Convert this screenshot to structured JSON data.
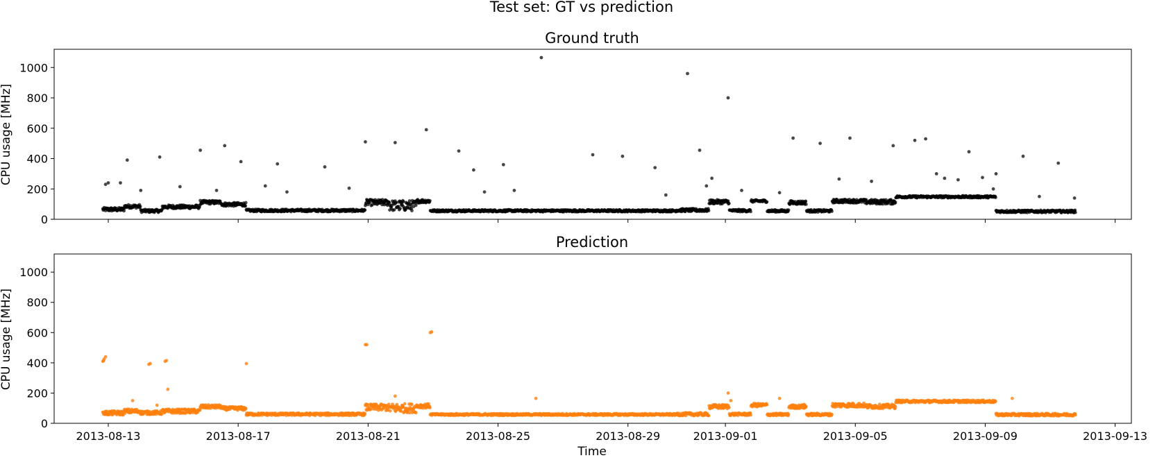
{
  "suptitle": "Test set: GT vs prediction",
  "xlabel": "Time",
  "x_tick_labels": [
    "2013-08-13",
    "2013-08-17",
    "2013-08-21",
    "2013-08-25",
    "2013-08-29",
    "2013-09-01",
    "2013-09-05",
    "2013-09-09",
    "2013-09-13"
  ],
  "chart_data": [
    {
      "type": "scatter",
      "title": "Ground truth",
      "ylabel": "CPU usage [MHz]",
      "xlim": [
        "2013-08-11T08:00",
        "2013-09-13T12:00"
      ],
      "ylim": [
        0,
        1120
      ],
      "y_ticks": [
        0,
        200,
        400,
        600,
        800,
        1000
      ],
      "color": "#000000",
      "baseline_segments": [
        {
          "x": [
            "2013-08-12T20:00",
            "2013-08-13T12:00"
          ],
          "y": 65,
          "jitter": 12
        },
        {
          "x": [
            "2013-08-13T12:00",
            "2013-08-14T00:00"
          ],
          "y": 85,
          "jitter": 12
        },
        {
          "x": [
            "2013-08-14T00:00",
            "2013-08-14T16:00"
          ],
          "y": 55,
          "jitter": 10
        },
        {
          "x": [
            "2013-08-14T16:00",
            "2013-08-15T20:00"
          ],
          "y": 82,
          "jitter": 12
        },
        {
          "x": [
            "2013-08-15T20:00",
            "2013-08-16T12:00"
          ],
          "y": 112,
          "jitter": 12
        },
        {
          "x": [
            "2013-08-16T12:00",
            "2013-08-17T06:00"
          ],
          "y": 98,
          "jitter": 12
        },
        {
          "x": [
            "2013-08-17T06:00",
            "2013-08-20T22:00"
          ],
          "y": 58,
          "jitter": 8
        },
        {
          "x": [
            "2013-08-20T22:00",
            "2013-08-21T16:00"
          ],
          "y": 110,
          "jitter": 20
        },
        {
          "x": [
            "2013-08-21T16:00",
            "2013-08-22T12:00"
          ],
          "y": 90,
          "jitter": 35
        },
        {
          "x": [
            "2013-08-22T12:00",
            "2013-08-22T22:00"
          ],
          "y": 120,
          "jitter": 12
        },
        {
          "x": [
            "2013-08-22T22:00",
            "2013-08-30T12:00"
          ],
          "y": 56,
          "jitter": 7
        },
        {
          "x": [
            "2013-08-30T12:00",
            "2013-08-31T12:00"
          ],
          "y": 60,
          "jitter": 10
        },
        {
          "x": [
            "2013-08-31T12:00",
            "2013-09-01T03:00"
          ],
          "y": 115,
          "jitter": 14
        },
        {
          "x": [
            "2013-09-01T03:00",
            "2013-09-01T19:00"
          ],
          "y": 57,
          "jitter": 8
        },
        {
          "x": [
            "2013-09-01T19:00",
            "2013-09-02T07:00"
          ],
          "y": 120,
          "jitter": 8
        },
        {
          "x": [
            "2013-09-02T07:00",
            "2013-09-02T23:00"
          ],
          "y": 55,
          "jitter": 8
        },
        {
          "x": [
            "2013-09-02T23:00",
            "2013-09-03T12:00"
          ],
          "y": 110,
          "jitter": 12
        },
        {
          "x": [
            "2013-09-03T12:00",
            "2013-09-04T07:00"
          ],
          "y": 55,
          "jitter": 8
        },
        {
          "x": [
            "2013-09-04T07:00",
            "2013-09-05T07:00"
          ],
          "y": 120,
          "jitter": 12
        },
        {
          "x": [
            "2013-09-05T07:00",
            "2013-09-06T06:00"
          ],
          "y": 115,
          "jitter": 15
        },
        {
          "x": [
            "2013-09-06T06:00",
            "2013-09-09T08:00"
          ],
          "y": 148,
          "jitter": 7
        },
        {
          "x": [
            "2013-09-09T08:00",
            "2013-09-11T19:00"
          ],
          "y": 52,
          "jitter": 8
        }
      ],
      "outliers": [
        {
          "x": "2013-08-12T22:00",
          "y": 230
        },
        {
          "x": "2013-08-13T00:00",
          "y": 240
        },
        {
          "x": "2013-08-13T09:00",
          "y": 240
        },
        {
          "x": "2013-08-13T14:00",
          "y": 390
        },
        {
          "x": "2013-08-14T00:00",
          "y": 190
        },
        {
          "x": "2013-08-14T14:00",
          "y": 410
        },
        {
          "x": "2013-08-15T05:00",
          "y": 215
        },
        {
          "x": "2013-08-15T20:00",
          "y": 455
        },
        {
          "x": "2013-08-16T08:00",
          "y": 190
        },
        {
          "x": "2013-08-16T14:00",
          "y": 485
        },
        {
          "x": "2013-08-17T02:00",
          "y": 380
        },
        {
          "x": "2013-08-17T20:00",
          "y": 220
        },
        {
          "x": "2013-08-18T05:00",
          "y": 365
        },
        {
          "x": "2013-08-18T12:00",
          "y": 180
        },
        {
          "x": "2013-08-19T16:00",
          "y": 345
        },
        {
          "x": "2013-08-20T10:00",
          "y": 205
        },
        {
          "x": "2013-08-20T22:00",
          "y": 510
        },
        {
          "x": "2013-08-21T20:00",
          "y": 505
        },
        {
          "x": "2013-08-22T19:00",
          "y": 590
        },
        {
          "x": "2013-08-23T19:00",
          "y": 450
        },
        {
          "x": "2013-08-24T06:00",
          "y": 325
        },
        {
          "x": "2013-08-24T14:00",
          "y": 180
        },
        {
          "x": "2013-08-25T04:00",
          "y": 360
        },
        {
          "x": "2013-08-25T12:00",
          "y": 190
        },
        {
          "x": "2013-08-26T08:00",
          "y": 1065
        },
        {
          "x": "2013-08-27T22:00",
          "y": 425
        },
        {
          "x": "2013-08-28T20:00",
          "y": 415
        },
        {
          "x": "2013-08-29T20:00",
          "y": 340
        },
        {
          "x": "2013-08-30T04:00",
          "y": 160
        },
        {
          "x": "2013-08-30T20:00",
          "y": 960
        },
        {
          "x": "2013-08-31T05:00",
          "y": 455
        },
        {
          "x": "2013-08-31T14:00",
          "y": 270
        },
        {
          "x": "2013-08-31T10:00",
          "y": 220
        },
        {
          "x": "2013-09-01T02:00",
          "y": 800
        },
        {
          "x": "2013-09-01T12:00",
          "y": 190
        },
        {
          "x": "2013-09-02T16:00",
          "y": 175
        },
        {
          "x": "2013-09-03T02:00",
          "y": 535
        },
        {
          "x": "2013-09-03T22:00",
          "y": 500
        },
        {
          "x": "2013-09-04T12:00",
          "y": 265
        },
        {
          "x": "2013-09-04T20:00",
          "y": 535
        },
        {
          "x": "2013-09-05T12:00",
          "y": 250
        },
        {
          "x": "2013-09-06T04:00",
          "y": 485
        },
        {
          "x": "2013-09-06T20:00",
          "y": 520
        },
        {
          "x": "2013-09-07T04:00",
          "y": 530
        },
        {
          "x": "2013-09-07T12:00",
          "y": 300
        },
        {
          "x": "2013-09-07T18:00",
          "y": 270
        },
        {
          "x": "2013-09-08T04:00",
          "y": 260
        },
        {
          "x": "2013-09-08T12:00",
          "y": 445
        },
        {
          "x": "2013-09-08T22:00",
          "y": 275
        },
        {
          "x": "2013-09-09T06:00",
          "y": 200
        },
        {
          "x": "2013-09-09T08:00",
          "y": 300
        },
        {
          "x": "2013-09-10T04:00",
          "y": 415
        },
        {
          "x": "2013-09-10T16:00",
          "y": 150
        },
        {
          "x": "2013-09-11T06:00",
          "y": 370
        },
        {
          "x": "2013-09-11T18:00",
          "y": 140
        }
      ]
    },
    {
      "type": "scatter",
      "title": "Prediction",
      "ylabel": "CPU usage [MHz]",
      "xlim": [
        "2013-08-11T08:00",
        "2013-09-13T12:00"
      ],
      "ylim": [
        0,
        1120
      ],
      "y_ticks": [
        0,
        200,
        400,
        600,
        800,
        1000
      ],
      "color": "#ff7f0e",
      "baseline_segments": [
        {
          "x": [
            "2013-08-12T20:00",
            "2013-08-13T12:00"
          ],
          "y": 68,
          "jitter": 14
        },
        {
          "x": [
            "2013-08-13T12:00",
            "2013-08-14T00:00"
          ],
          "y": 80,
          "jitter": 14
        },
        {
          "x": [
            "2013-08-14T00:00",
            "2013-08-14T16:00"
          ],
          "y": 70,
          "jitter": 12
        },
        {
          "x": [
            "2013-08-14T16:00",
            "2013-08-15T20:00"
          ],
          "y": 80,
          "jitter": 14
        },
        {
          "x": [
            "2013-08-15T20:00",
            "2013-08-16T12:00"
          ],
          "y": 110,
          "jitter": 12
        },
        {
          "x": [
            "2013-08-16T12:00",
            "2013-08-17T06:00"
          ],
          "y": 98,
          "jitter": 12
        },
        {
          "x": [
            "2013-08-17T06:00",
            "2013-08-20T22:00"
          ],
          "y": 60,
          "jitter": 8
        },
        {
          "x": [
            "2013-08-20T22:00",
            "2013-08-21T16:00"
          ],
          "y": 105,
          "jitter": 22
        },
        {
          "x": [
            "2013-08-21T16:00",
            "2013-08-22T12:00"
          ],
          "y": 100,
          "jitter": 30
        },
        {
          "x": [
            "2013-08-22T12:00",
            "2013-08-22T22:00"
          ],
          "y": 115,
          "jitter": 14
        },
        {
          "x": [
            "2013-08-22T22:00",
            "2013-08-30T12:00"
          ],
          "y": 58,
          "jitter": 6
        },
        {
          "x": [
            "2013-08-30T12:00",
            "2013-08-31T12:00"
          ],
          "y": 60,
          "jitter": 10
        },
        {
          "x": [
            "2013-08-31T12:00",
            "2013-09-01T03:00"
          ],
          "y": 110,
          "jitter": 14
        },
        {
          "x": [
            "2013-09-01T03:00",
            "2013-09-01T19:00"
          ],
          "y": 60,
          "jitter": 8
        },
        {
          "x": [
            "2013-09-01T19:00",
            "2013-09-02T07:00"
          ],
          "y": 120,
          "jitter": 12
        },
        {
          "x": [
            "2013-09-02T07:00",
            "2013-09-02T23:00"
          ],
          "y": 58,
          "jitter": 8
        },
        {
          "x": [
            "2013-09-02T23:00",
            "2013-09-03T12:00"
          ],
          "y": 110,
          "jitter": 12
        },
        {
          "x": [
            "2013-09-03T12:00",
            "2013-09-04T07:00"
          ],
          "y": 58,
          "jitter": 8
        },
        {
          "x": [
            "2013-09-04T07:00",
            "2013-09-05T07:00"
          ],
          "y": 120,
          "jitter": 14
        },
        {
          "x": [
            "2013-09-05T07:00",
            "2013-09-06T06:00"
          ],
          "y": 112,
          "jitter": 14
        },
        {
          "x": [
            "2013-09-06T06:00",
            "2013-09-09T08:00"
          ],
          "y": 145,
          "jitter": 8
        },
        {
          "x": [
            "2013-09-09T08:00",
            "2013-09-11T19:00"
          ],
          "y": 57,
          "jitter": 8
        }
      ],
      "outliers": [
        {
          "x": "2013-08-12T20:00",
          "y": 410
        },
        {
          "x": "2013-08-12T21:00",
          "y": 425
        },
        {
          "x": "2013-08-12T22:00",
          "y": 440
        },
        {
          "x": "2013-08-12T20:30",
          "y": 415
        },
        {
          "x": "2013-08-13T18:00",
          "y": 150
        },
        {
          "x": "2013-08-14T06:00",
          "y": 390
        },
        {
          "x": "2013-08-14T07:00",
          "y": 395
        },
        {
          "x": "2013-08-14T12:00",
          "y": 120
        },
        {
          "x": "2013-08-14T18:00",
          "y": 410
        },
        {
          "x": "2013-08-14T19:00",
          "y": 415
        },
        {
          "x": "2013-08-14T20:00",
          "y": 225
        },
        {
          "x": "2013-08-17T06:00",
          "y": 395
        },
        {
          "x": "2013-08-20T22:00",
          "y": 520
        },
        {
          "x": "2013-08-20T23:00",
          "y": 520
        },
        {
          "x": "2013-08-21T20:00",
          "y": 180
        },
        {
          "x": "2013-08-22T22:00",
          "y": 600
        },
        {
          "x": "2013-08-22T23:00",
          "y": 605
        },
        {
          "x": "2013-08-26T04:00",
          "y": 165
        },
        {
          "x": "2013-09-01T02:00",
          "y": 200
        },
        {
          "x": "2013-09-01T04:00",
          "y": 150
        },
        {
          "x": "2013-09-02T16:00",
          "y": 165
        },
        {
          "x": "2013-09-03T10:00",
          "y": 125
        },
        {
          "x": "2013-09-09T20:00",
          "y": 165
        }
      ]
    }
  ]
}
